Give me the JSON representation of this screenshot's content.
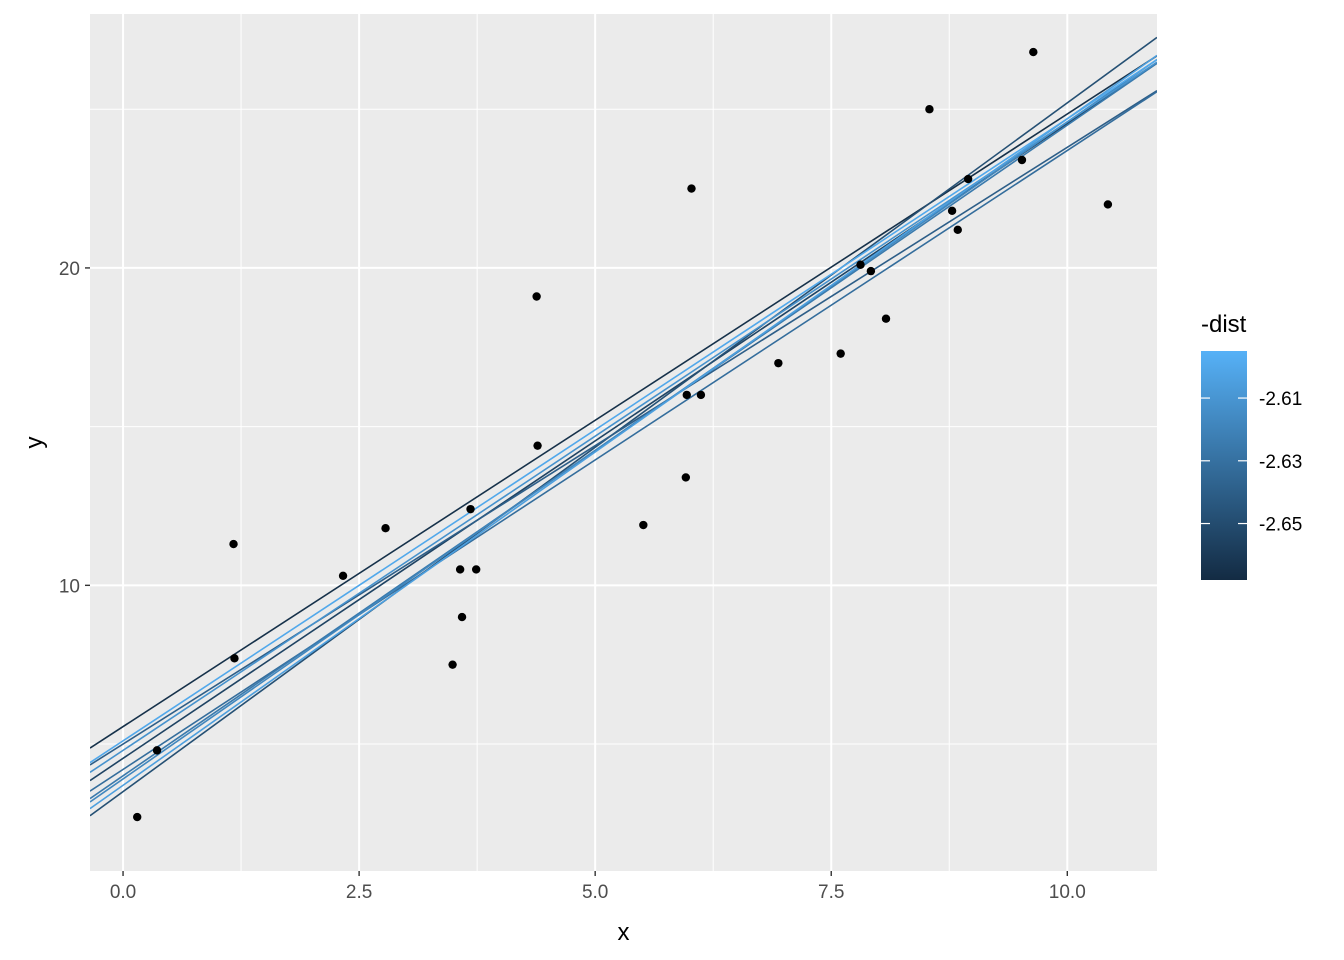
{
  "chart_data": {
    "type": "scatter",
    "xlabel": "x",
    "ylabel": "y",
    "xlim": [
      -0.35,
      10.95
    ],
    "ylim": [
      1.0,
      28.0
    ],
    "x_ticks": [
      0.0,
      2.5,
      5.0,
      7.5,
      10.0
    ],
    "x_tick_labels": [
      "0.0",
      "2.5",
      "5.0",
      "7.5",
      "10.0"
    ],
    "y_ticks": [
      10,
      20
    ],
    "y_tick_labels": [
      "10",
      "20"
    ],
    "grid": true,
    "points": [
      {
        "x": 0.15,
        "y": 2.7
      },
      {
        "x": 0.36,
        "y": 4.8
      },
      {
        "x": 1.17,
        "y": 11.3
      },
      {
        "x": 1.18,
        "y": 7.7
      },
      {
        "x": 2.33,
        "y": 10.3
      },
      {
        "x": 2.78,
        "y": 11.8
      },
      {
        "x": 3.49,
        "y": 7.5
      },
      {
        "x": 3.57,
        "y": 10.5
      },
      {
        "x": 3.59,
        "y": 9.0
      },
      {
        "x": 3.68,
        "y": 12.4
      },
      {
        "x": 3.74,
        "y": 10.5
      },
      {
        "x": 4.38,
        "y": 19.1
      },
      {
        "x": 4.39,
        "y": 14.4
      },
      {
        "x": 5.51,
        "y": 11.9
      },
      {
        "x": 5.96,
        "y": 13.4
      },
      {
        "x": 5.97,
        "y": 16.0
      },
      {
        "x": 6.02,
        "y": 22.5
      },
      {
        "x": 6.12,
        "y": 16.0
      },
      {
        "x": 6.94,
        "y": 17.0
      },
      {
        "x": 7.6,
        "y": 17.3
      },
      {
        "x": 7.81,
        "y": 20.1
      },
      {
        "x": 7.92,
        "y": 19.9
      },
      {
        "x": 8.08,
        "y": 18.4
      },
      {
        "x": 8.54,
        "y": 25.0
      },
      {
        "x": 8.78,
        "y": 21.8
      },
      {
        "x": 8.84,
        "y": 21.2
      },
      {
        "x": 8.95,
        "y": 22.8
      },
      {
        "x": 9.52,
        "y": 23.4
      },
      {
        "x": 9.64,
        "y": 26.8
      },
      {
        "x": 10.43,
        "y": 22.0
      }
    ],
    "lines": [
      {
        "intercept": 5.55,
        "slope": 1.93,
        "dist": 2.665
      },
      {
        "intercept": 4.55,
        "slope": 2.0,
        "dist": 2.655
      },
      {
        "intercept": 3.5,
        "slope": 2.17,
        "dist": 2.648
      },
      {
        "intercept": 5.0,
        "slope": 1.88,
        "dist": 2.64
      },
      {
        "intercept": 4.2,
        "slope": 1.95,
        "dist": 2.632
      },
      {
        "intercept": 4.0,
        "slope": 2.05,
        "dist": 2.625
      },
      {
        "intercept": 3.9,
        "slope": 2.07,
        "dist": 2.618
      },
      {
        "intercept": 4.8,
        "slope": 1.98,
        "dist": 2.612
      },
      {
        "intercept": 3.7,
        "slope": 2.1,
        "dist": 2.605
      },
      {
        "intercept": 5.1,
        "slope": 1.96,
        "dist": 2.6
      }
    ],
    "legend": {
      "title": "-dist",
      "position": "right",
      "range": [
        -2.668,
        -2.595
      ],
      "ticks": [
        -2.61,
        -2.63,
        -2.65
      ],
      "tick_labels": [
        "-2.61",
        "-2.63",
        "-2.65"
      ],
      "color_low": "#132B43",
      "color_high": "#56B1F7"
    },
    "colors": {
      "panel_bg": "#EBEBEB",
      "grid": "#FFFFFF",
      "point": "#000000"
    }
  }
}
